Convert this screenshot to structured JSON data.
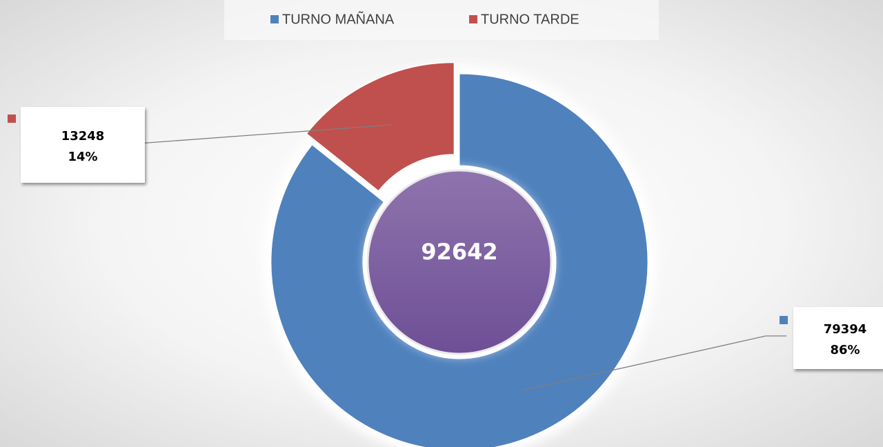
{
  "chart_data": {
    "type": "donut",
    "series": [
      {
        "name": "TURNO MAÑANA",
        "color": "#4f81bd",
        "values": [
          79394
        ],
        "percent_labels": [
          "86%"
        ]
      },
      {
        "name": "TURNO TARDE",
        "color": "#c0504d",
        "values": [
          13248
        ],
        "percent_labels": [
          "14%"
        ]
      }
    ],
    "total": 92642,
    "legend": "top"
  }
}
